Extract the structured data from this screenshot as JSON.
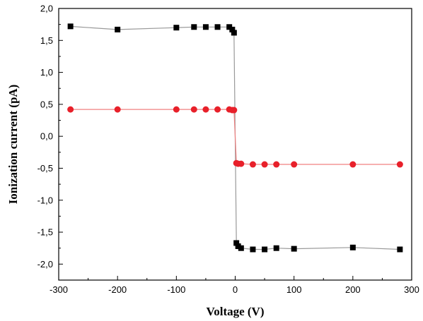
{
  "chart_data": {
    "type": "scatter",
    "title": "",
    "xlabel": "Voltage (V)",
    "ylabel": "Ionization current (pA)",
    "xlim": [
      -300,
      300
    ],
    "ylim": [
      -2.25,
      2.0
    ],
    "grid": false,
    "x_ticks": [
      -300,
      -200,
      -100,
      0,
      100,
      200,
      300
    ],
    "x_tick_labels": [
      "-300",
      "-200",
      "-100",
      "0",
      "100",
      "200",
      "300"
    ],
    "y_ticks": [
      2.0,
      1.5,
      1.0,
      0.5,
      0.0,
      -0.5,
      -1.0,
      -1.5,
      -2.0
    ],
    "y_tick_labels": [
      "2,0",
      "1,5",
      "1,0",
      "0,5",
      "0,0",
      "-0,5",
      "-1,0",
      "-1,5",
      "-2,0"
    ],
    "series": [
      {
        "marker": "square",
        "color": "#000000",
        "line_color": "#999999",
        "x": [
          -280,
          -200,
          -100,
          -70,
          -50,
          -30,
          -10,
          -5,
          -2,
          2,
          5,
          10,
          30,
          50,
          70,
          100,
          200,
          280
        ],
        "y": [
          1.72,
          1.67,
          1.7,
          1.71,
          1.71,
          1.71,
          1.71,
          1.67,
          1.62,
          -1.67,
          -1.72,
          -1.75,
          -1.77,
          -1.77,
          -1.75,
          -1.76,
          -1.74,
          -1.77
        ]
      },
      {
        "marker": "circle",
        "color": "#e8202a",
        "line_color": "#f08080",
        "x": [
          -280,
          -200,
          -100,
          -70,
          -50,
          -30,
          -10,
          -5,
          -2,
          2,
          5,
          10,
          30,
          50,
          70,
          100,
          200,
          280
        ],
        "y": [
          0.42,
          0.42,
          0.42,
          0.42,
          0.42,
          0.42,
          0.42,
          0.41,
          0.41,
          -0.42,
          -0.43,
          -0.43,
          -0.44,
          -0.44,
          -0.44,
          -0.44,
          -0.44,
          -0.44
        ]
      }
    ]
  }
}
